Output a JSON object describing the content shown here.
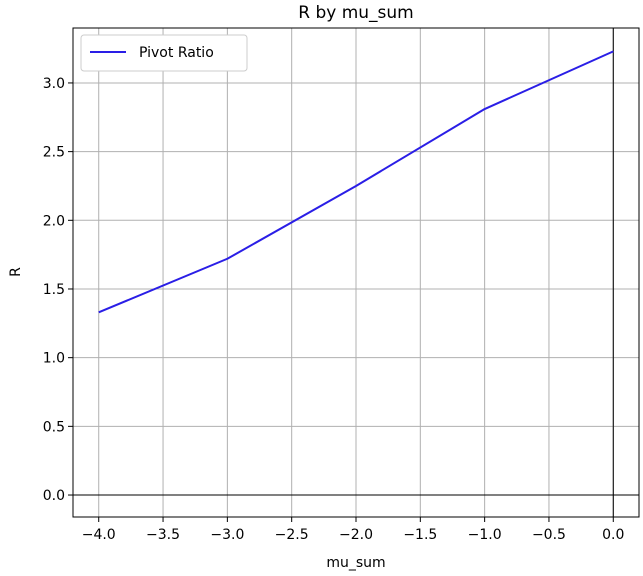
{
  "chart_data": {
    "type": "line",
    "title": "R by mu_sum",
    "xlabel": "mu_sum",
    "ylabel": "R",
    "xlim": [
      -4.2,
      0.2
    ],
    "ylim": [
      -0.16,
      3.4
    ],
    "xticks": [
      -4.0,
      -3.5,
      -3.0,
      -2.5,
      -2.0,
      -1.5,
      -1.0,
      -0.5,
      0.0
    ],
    "xtick_labels": [
      "−4.0",
      "−3.5",
      "−3.0",
      "−2.5",
      "−2.0",
      "−1.5",
      "−1.0",
      "−0.5",
      "0.0"
    ],
    "yticks": [
      0.0,
      0.5,
      1.0,
      1.5,
      2.0,
      2.5,
      3.0
    ],
    "ytick_labels": [
      "0.0",
      "0.5",
      "1.0",
      "1.5",
      "2.0",
      "2.5",
      "3.0"
    ],
    "grid": true,
    "reference_lines": {
      "x": 0,
      "y": 0
    },
    "legend": {
      "position": "top-left"
    },
    "series": [
      {
        "name": "Pivot Ratio",
        "color": "#2a1ee6",
        "x": [
          -4.0,
          -3.0,
          -2.0,
          -1.0,
          0.0
        ],
        "y": [
          1.33,
          1.72,
          2.25,
          2.81,
          3.23
        ]
      }
    ]
  }
}
